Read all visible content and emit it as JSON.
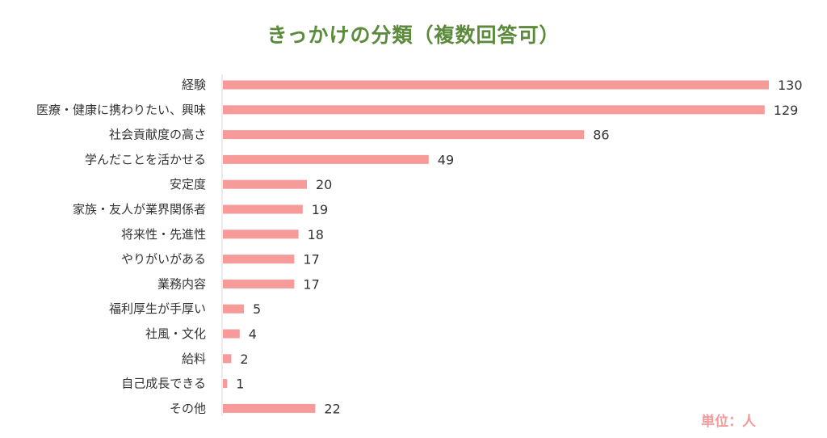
{
  "title": "きっかけの分類（複数回答可）",
  "unit_label": "単位：人",
  "colors": {
    "title": "#5a8a3a",
    "bar": "#f69a9a",
    "unit": "#f39a9a",
    "axis": "#d9d9d9",
    "label": "#333333"
  },
  "chart_data": {
    "type": "bar",
    "orientation": "horizontal",
    "title": "きっかけの分類（複数回答可）",
    "categories": [
      "経験",
      "医療・健康に携わりたい、興味",
      "社会貢献度の高さ",
      "学んだことを活かせる",
      "安定度",
      "家族・友人が業界関係者",
      "将来性・先進性",
      "やりがいがある",
      "業務内容",
      "福利厚生が手厚い",
      "社風・文化",
      "給料",
      "自己成長できる",
      "その他"
    ],
    "values": [
      130,
      129,
      86,
      49,
      20,
      19,
      18,
      17,
      17,
      5,
      4,
      2,
      1,
      22
    ],
    "xlim": [
      0,
      130
    ],
    "grid": false,
    "legend": "none"
  }
}
